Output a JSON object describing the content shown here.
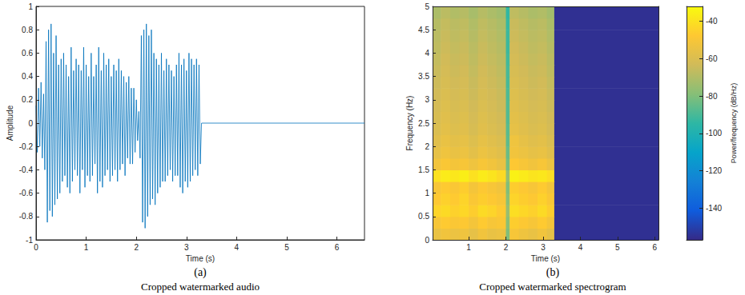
{
  "chart_data": [
    {
      "type": "line",
      "panel_label": "(a)",
      "title": "Cropped watermarked audio",
      "xlabel": "Time (s)",
      "ylabel": "Amplitude",
      "color": "#0072bd",
      "grid": false,
      "xlim": [
        0,
        6.55
      ],
      "xticks": [
        0,
        1,
        2,
        3,
        4,
        5,
        6
      ],
      "ylim": [
        -1,
        1
      ],
      "yticks": [
        -1,
        -0.8,
        -0.6,
        -0.4,
        -0.2,
        0,
        0.2,
        0.4,
        0.6,
        0.8,
        1
      ],
      "x": [
        0,
        0.025,
        0.05,
        0.075,
        0.1,
        0.125,
        0.15,
        0.175,
        0.2,
        0.225,
        0.25,
        0.275,
        0.3,
        0.325,
        0.35,
        0.375,
        0.4,
        0.425,
        0.45,
        0.475,
        0.5,
        0.525,
        0.55,
        0.575,
        0.6,
        0.625,
        0.65,
        0.675,
        0.7,
        0.725,
        0.75,
        0.775,
        0.8,
        0.825,
        0.85,
        0.875,
        0.9,
        0.925,
        0.95,
        0.975,
        1,
        1.025,
        1.05,
        1.075,
        1.1,
        1.125,
        1.15,
        1.175,
        1.2,
        1.225,
        1.25,
        1.275,
        1.3,
        1.325,
        1.35,
        1.375,
        1.4,
        1.425,
        1.45,
        1.475,
        1.5,
        1.525,
        1.55,
        1.575,
        1.6,
        1.625,
        1.65,
        1.675,
        1.7,
        1.725,
        1.75,
        1.775,
        1.8,
        1.825,
        1.85,
        1.875,
        1.9,
        1.925,
        1.95,
        1.975,
        2,
        2.025,
        2.05,
        2.075,
        2.1,
        2.125,
        2.15,
        2.175,
        2.2,
        2.225,
        2.25,
        2.275,
        2.3,
        2.325,
        2.35,
        2.375,
        2.4,
        2.425,
        2.45,
        2.475,
        2.5,
        2.525,
        2.55,
        2.575,
        2.6,
        2.625,
        2.65,
        2.675,
        2.7,
        2.725,
        2.75,
        2.775,
        2.8,
        2.825,
        2.85,
        2.875,
        2.9,
        2.925,
        2.95,
        2.975,
        3,
        3.025,
        3.05,
        3.075,
        3.1,
        3.125,
        3.15,
        3.175,
        3.2,
        3.225,
        3.25,
        3.275,
        3.3,
        6.55
      ],
      "values": [
        0.15,
        -0.25,
        0.3,
        -0.2,
        0.35,
        -0.3,
        0.25,
        -0.4,
        0.7,
        -0.85,
        0.8,
        -0.75,
        0.85,
        -0.8,
        0.6,
        -0.7,
        0.75,
        -0.65,
        0.5,
        -0.6,
        0.55,
        -0.5,
        0.6,
        -0.45,
        0.5,
        -0.55,
        0.4,
        -0.6,
        0.65,
        -0.5,
        0.45,
        -0.4,
        0.55,
        -0.45,
        0.5,
        -0.6,
        0.45,
        -0.4,
        0.65,
        -0.55,
        0.5,
        -0.45,
        0.4,
        -0.5,
        0.6,
        -0.45,
        0.4,
        -0.35,
        0.5,
        -0.6,
        0.65,
        -0.5,
        0.45,
        -0.55,
        0.6,
        -0.45,
        0.5,
        -0.4,
        0.55,
        -0.5,
        0.4,
        -0.45,
        0.5,
        -0.4,
        0.45,
        -0.5,
        0.55,
        -0.4,
        0.45,
        -0.35,
        0.4,
        -0.45,
        0.35,
        -0.3,
        0.4,
        -0.35,
        0.3,
        -0.35,
        0.3,
        -0.25,
        0.2,
        -0.15,
        0.1,
        -0.3,
        0.75,
        -0.85,
        0.8,
        -0.9,
        0.85,
        -0.8,
        0.75,
        -0.7,
        0.8,
        -0.65,
        0.6,
        -0.7,
        0.55,
        -0.6,
        0.5,
        -0.55,
        0.6,
        -0.5,
        0.45,
        -0.5,
        0.55,
        -0.45,
        0.5,
        -0.4,
        0.45,
        -0.5,
        0.4,
        -0.45,
        0.5,
        -0.45,
        0.6,
        -0.55,
        0.5,
        -0.6,
        0.55,
        -0.5,
        0.45,
        -0.55,
        0.6,
        -0.5,
        0.55,
        -0.45,
        0.5,
        -0.4,
        0.55,
        -0.45,
        0.5,
        -0.35,
        0,
        0
      ]
    },
    {
      "type": "heatmap",
      "panel_label": "(b)",
      "title": "Cropped watermarked spectrogram",
      "xlabel": "Time (s)",
      "ylabel": "Frequency (Hz)",
      "colorbar_label": "Power/frequency (dB/Hz)",
      "grid": false,
      "xlim": [
        0.03,
        6.1
      ],
      "xticks": [
        1,
        2,
        3,
        4,
        5,
        6
      ],
      "ylim": [
        0,
        5
      ],
      "yticks": [
        0,
        0.5,
        1,
        1.5,
        2,
        2.5,
        3,
        3.5,
        4,
        4.5,
        5
      ],
      "clim": [
        -157,
        -32
      ],
      "cticks": [
        -140,
        -120,
        -100,
        -80,
        -60,
        -40
      ],
      "x_edges": [
        0,
        0.25,
        0.5,
        0.75,
        1,
        1.25,
        1.5,
        1.75,
        2,
        2.1,
        2.35,
        2.6,
        2.85,
        3.1,
        3.3,
        6.1
      ],
      "y_edges": [
        0,
        0.25,
        0.5,
        0.75,
        1,
        1.25,
        1.5,
        1.75,
        2,
        2.25,
        2.5,
        2.75,
        3,
        3.25,
        3.5,
        3.75,
        4,
        4.25,
        4.5,
        4.75,
        5
      ],
      "cells": [
        [
          -55,
          -52,
          -54,
          -53,
          -56,
          -52,
          -55,
          -54,
          -80,
          -50,
          -53,
          -55,
          -52,
          -56,
          -155
        ],
        [
          -50,
          -47,
          -49,
          -48,
          -51,
          -47,
          -50,
          -49,
          -78,
          -46,
          -48,
          -50,
          -47,
          -51,
          -155
        ],
        [
          -44,
          -42,
          -45,
          -43,
          -46,
          -42,
          -44,
          -47,
          -75,
          -41,
          -43,
          -45,
          -42,
          -46,
          -155
        ],
        [
          -48,
          -45,
          -47,
          -44,
          -49,
          -46,
          -48,
          -50,
          -78,
          -44,
          -46,
          -48,
          -45,
          -49,
          -155
        ],
        [
          -50,
          -47,
          -49,
          -46,
          -51,
          -48,
          -50,
          -52,
          -80,
          -46,
          -48,
          -50,
          -47,
          -51,
          -155
        ],
        [
          -40,
          -37,
          -38,
          -36,
          -40,
          -37,
          -39,
          -42,
          -76,
          -35,
          -37,
          -39,
          -38,
          -41,
          -155
        ],
        [
          -52,
          -49,
          -51,
          -50,
          -53,
          -50,
          -52,
          -55,
          -82,
          -48,
          -50,
          -52,
          -50,
          -54,
          -155
        ],
        [
          -56,
          -53,
          -55,
          -54,
          -57,
          -54,
          -56,
          -58,
          -84,
          -52,
          -54,
          -56,
          -55,
          -58,
          -155
        ],
        [
          -58,
          -55,
          -57,
          -56,
          -59,
          -56,
          -58,
          -60,
          -86,
          -53,
          -56,
          -58,
          -57,
          -60,
          -155
        ],
        [
          -60,
          -57,
          -59,
          -58,
          -61,
          -58,
          -60,
          -62,
          -87,
          -56,
          -58,
          -60,
          -59,
          -62,
          -155
        ],
        [
          -61,
          -58,
          -60,
          -59,
          -62,
          -59,
          -61,
          -63,
          -88,
          -57,
          -59,
          -61,
          -60,
          -63,
          -155
        ],
        [
          -62,
          -59,
          -61,
          -60,
          -63,
          -60,
          -62,
          -64,
          -88,
          -58,
          -60,
          -62,
          -61,
          -64,
          -155
        ],
        [
          -63,
          -60,
          -62,
          -61,
          -64,
          -61,
          -63,
          -65,
          -89,
          -59,
          -61,
          -63,
          -62,
          -65,
          -155
        ],
        [
          -64,
          -61,
          -63,
          -62,
          -65,
          -62,
          -64,
          -66,
          -90,
          -60,
          -62,
          -64,
          -63,
          -66,
          -155
        ],
        [
          -65,
          -62,
          -64,
          -63,
          -66,
          -63,
          -65,
          -67,
          -90,
          -61,
          -63,
          -65,
          -64,
          -67,
          -155
        ],
        [
          -66,
          -63,
          -65,
          -64,
          -67,
          -64,
          -66,
          -68,
          -91,
          -62,
          -64,
          -66,
          -65,
          -68,
          -155
        ],
        [
          -67,
          -64,
          -66,
          -65,
          -68,
          -65,
          -67,
          -69,
          -92,
          -63,
          -65,
          -67,
          -66,
          -69,
          -155
        ],
        [
          -68,
          -65,
          -67,
          -66,
          -69,
          -66,
          -68,
          -70,
          -92,
          -64,
          -66,
          -68,
          -67,
          -70,
          -155
        ],
        [
          -69,
          -66,
          -68,
          -67,
          -70,
          -67,
          -69,
          -71,
          -93,
          -65,
          -67,
          -69,
          -68,
          -71,
          -155
        ],
        [
          -71,
          -68,
          -70,
          -69,
          -72,
          -69,
          -71,
          -73,
          -94,
          -67,
          -69,
          -71,
          -70,
          -73,
          -155
        ]
      ]
    }
  ]
}
